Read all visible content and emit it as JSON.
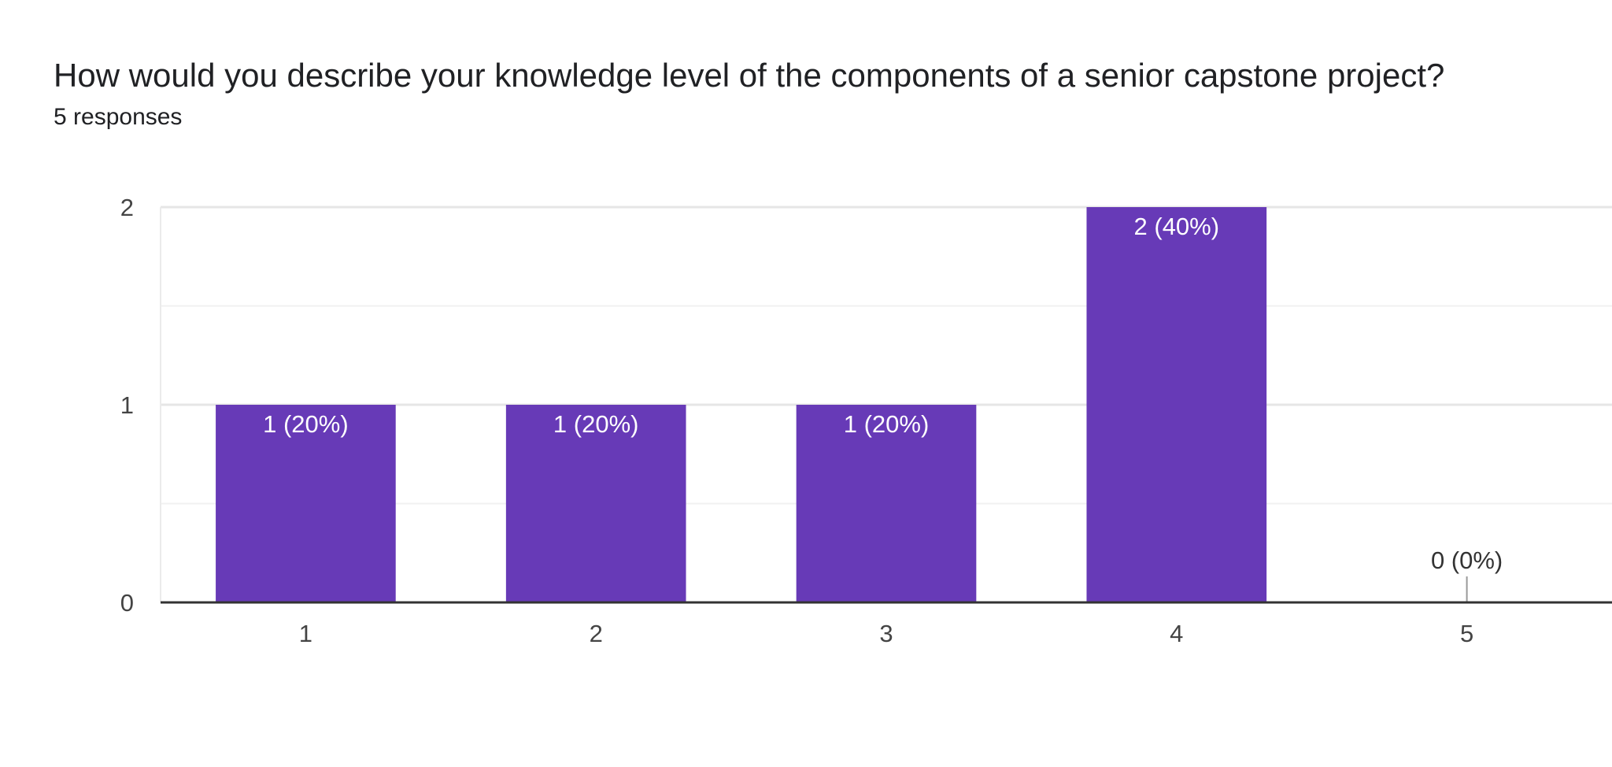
{
  "header": {
    "title": "How would you describe your knowledge level of the components of a senior capstone project?",
    "responses": "5 responses"
  },
  "colors": {
    "bar": "#673ab7",
    "grid": "#ebebeb",
    "axis": "#333333"
  },
  "chart_data": {
    "type": "bar",
    "categories": [
      "1",
      "2",
      "3",
      "4",
      "5"
    ],
    "values": [
      1,
      1,
      1,
      2,
      0
    ],
    "data_labels": [
      "1 (20%)",
      "1 (20%)",
      "1 (20%)",
      "2 (40%)",
      "0 (0%)"
    ],
    "ylim": [
      0,
      2
    ],
    "yticks": [
      0,
      1,
      2
    ],
    "grid": true,
    "xlabel": "",
    "ylabel": ""
  }
}
